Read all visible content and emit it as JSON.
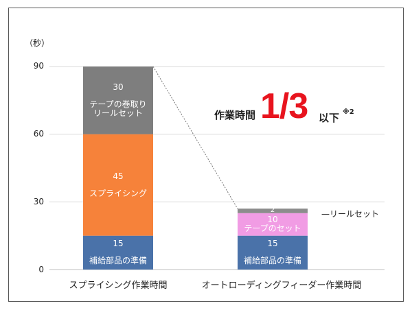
{
  "chart_data": {
    "type": "bar",
    "stacked": true,
    "unit_label": "（秒）",
    "ylim": [
      0,
      90
    ],
    "yticks": [
      "0",
      "30",
      "60",
      "90"
    ],
    "grid": true,
    "categories": [
      "スプライシング作業時間",
      "オートローディングフィーダー作業時間"
    ],
    "stacks": [
      {
        "category": "スプライシング作業時間",
        "segments": [
          {
            "value": 15,
            "value_label": "15",
            "name": "補給部品の準備",
            "color": "#4a72a9"
          },
          {
            "value": 45,
            "value_label": "45",
            "name": "スプライシング",
            "color": "#f6823a"
          },
          {
            "value": 30,
            "value_label": "30",
            "name": "テープの巻取り\nリールセット",
            "color": "#7e7e7e"
          }
        ]
      },
      {
        "category": "オートローディングフィーダー作業時間",
        "segments": [
          {
            "value": 15,
            "value_label": "15",
            "name": "補給部品の準備",
            "color": "#4a72a9"
          },
          {
            "value": 10,
            "value_label": "10",
            "name": "テープのセット",
            "color": "#f19ce4"
          },
          {
            "value": 2,
            "value_label": "2",
            "name": "",
            "color": "#8c8c8c"
          }
        ]
      }
    ],
    "callout_label": "リールセット",
    "headline": {
      "prefix": "作業時間",
      "emphasis": "1/3",
      "suffix": "以下",
      "note": "※2"
    }
  }
}
